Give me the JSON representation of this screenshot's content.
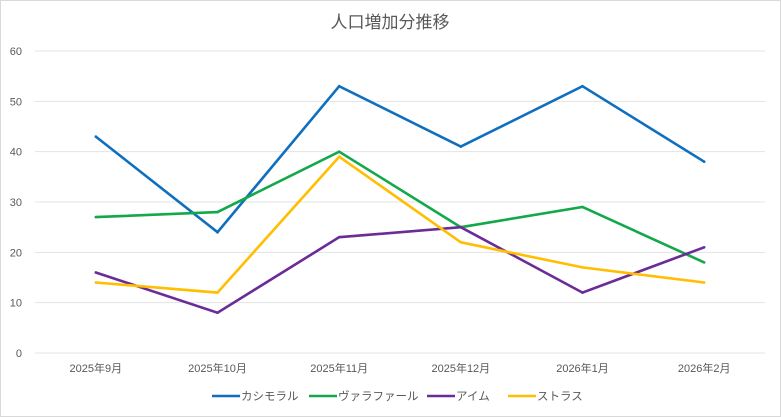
{
  "chart_data": {
    "type": "line",
    "title": "人口増加分推移",
    "xlabel": "",
    "ylabel": "",
    "categories": [
      "2025年9月",
      "2025年10月",
      "2025年11月",
      "2025年12月",
      "2026年1月",
      "2026年2月"
    ],
    "ylim": [
      0,
      60
    ],
    "yticks": [
      0,
      10,
      20,
      30,
      40,
      50,
      60
    ],
    "grid": true,
    "legend_position": "bottom",
    "series": [
      {
        "name": "カシモラル",
        "color": "#0F6FBF",
        "values": [
          43,
          24,
          53,
          41,
          53,
          38
        ]
      },
      {
        "name": "ヴァラファール",
        "color": "#13A84A",
        "values": [
          27,
          28,
          40,
          25,
          29,
          18
        ]
      },
      {
        "name": "アイム",
        "color": "#6A2C96",
        "values": [
          16,
          8,
          23,
          25,
          12,
          21
        ]
      },
      {
        "name": "ストラス",
        "color": "#FFBE00",
        "values": [
          14,
          12,
          39,
          22,
          17,
          14
        ]
      }
    ]
  }
}
